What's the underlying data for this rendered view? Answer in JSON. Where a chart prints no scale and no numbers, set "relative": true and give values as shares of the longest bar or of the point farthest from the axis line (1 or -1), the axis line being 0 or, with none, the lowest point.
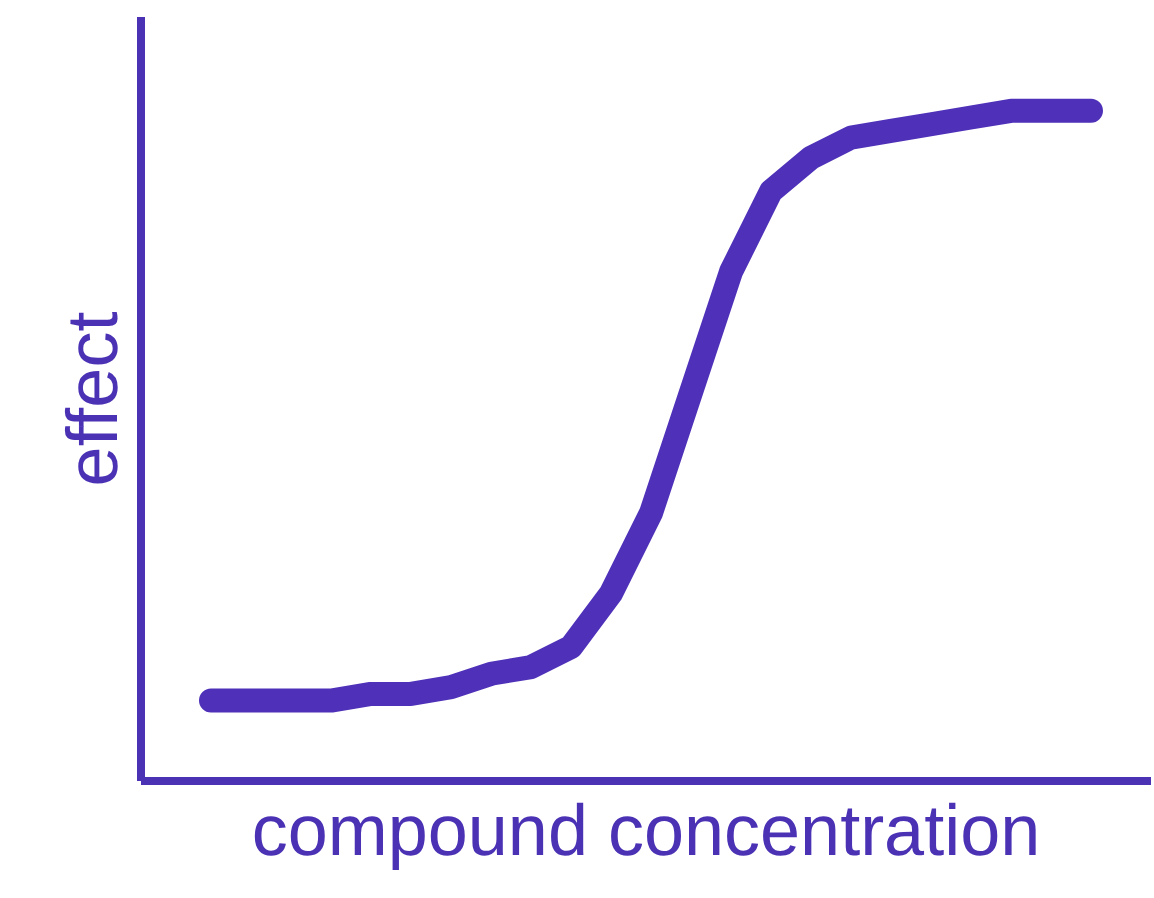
{
  "chart_data": {
    "type": "line",
    "xlabel": "compound concentration",
    "ylabel": "effect",
    "relative": true,
    "line_style": "solid",
    "categories": [
      null,
      null,
      null,
      null,
      null,
      null,
      null,
      null,
      null,
      null,
      null,
      null,
      null,
      null,
      null,
      null,
      null,
      null,
      null,
      null,
      null,
      null,
      null
    ],
    "series": [
      {
        "color": "#4e31b8",
        "values": [
          0.12,
          0.12,
          0.12,
          0.12,
          0.13,
          0.13,
          0.14,
          0.16,
          0.17,
          0.2,
          0.28,
          0.4,
          0.58,
          0.76,
          0.88,
          0.93,
          0.96,
          0.97,
          0.98,
          0.99,
          1,
          1,
          1
        ]
      }
    ]
  }
}
